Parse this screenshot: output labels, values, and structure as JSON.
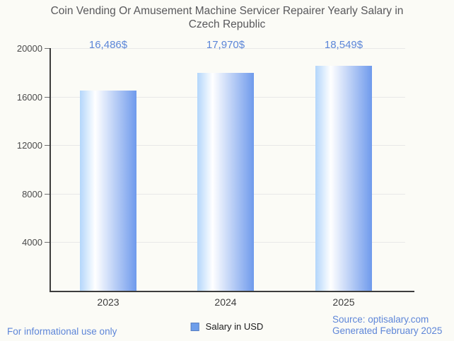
{
  "title": "Coin Vending Or Amusement Machine Servicer Repairer Yearly Salary in Czech Republic",
  "chart_data": {
    "type": "bar",
    "categories": [
      "2023",
      "2024",
      "2025"
    ],
    "series": [
      {
        "name": "Salary in USD",
        "values": [
          16486,
          17970,
          18549
        ]
      }
    ],
    "value_labels": [
      "16,486$",
      "17,970$",
      "18,549$"
    ],
    "title": "Coin Vending Or Amusement Machine Servicer Repairer Yearly Salary in Czech Republic",
    "xlabel": "",
    "ylabel": "",
    "ylim": [
      0,
      20000
    ],
    "yticks": [
      4000,
      8000,
      12000,
      16000,
      20000
    ],
    "grid": true,
    "legend_position": "bottom",
    "bar_gradient": {
      "left": "#b3d6fb",
      "mid": "#ffffff",
      "right": "#6f9aec"
    }
  },
  "legend": {
    "label": "Salary in USD",
    "swatch_color": "#6d9eeb"
  },
  "footer": {
    "left_note": "For informational use only",
    "source": "Source: optisalary.com",
    "generated": "Generated February 2025"
  },
  "colors": {
    "accent_blue": "#5c86d8",
    "title_gray": "#58585b",
    "background": "#fbfbf6"
  }
}
